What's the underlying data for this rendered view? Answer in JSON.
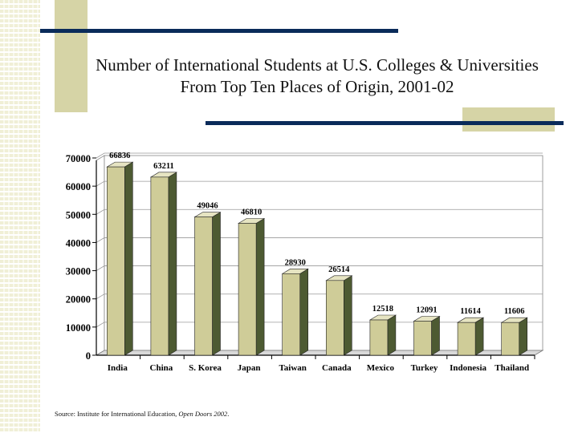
{
  "title": "Number of International Students at U.S. Colleges & Universities From Top Ten Places of Origin, 2001-02",
  "source": {
    "prefix": "Source: Institute for International Education, ",
    "publication": "Open Doors 2002",
    "suffix": "."
  },
  "colors": {
    "bar_face": "#cfcc98",
    "bar_side": "#4d5a32",
    "bar_top": "#e6e4c2",
    "accent_navy": "#0a2b5a",
    "accent_tan": "#d6d4a6"
  },
  "chart_data": {
    "type": "bar",
    "title": "",
    "xlabel": "",
    "ylabel": "",
    "ylim": [
      0,
      70000
    ],
    "yticks": [
      0,
      10000,
      20000,
      30000,
      40000,
      50000,
      60000,
      70000
    ],
    "grid": true,
    "categories": [
      "India",
      "China",
      "S. Korea",
      "Japan",
      "Taiwan",
      "Canada",
      "Mexico",
      "Turkey",
      "Indonesia",
      "Thailand"
    ],
    "values": [
      66836,
      63211,
      49046,
      46810,
      28930,
      26514,
      12518,
      12091,
      11614,
      11606
    ]
  }
}
